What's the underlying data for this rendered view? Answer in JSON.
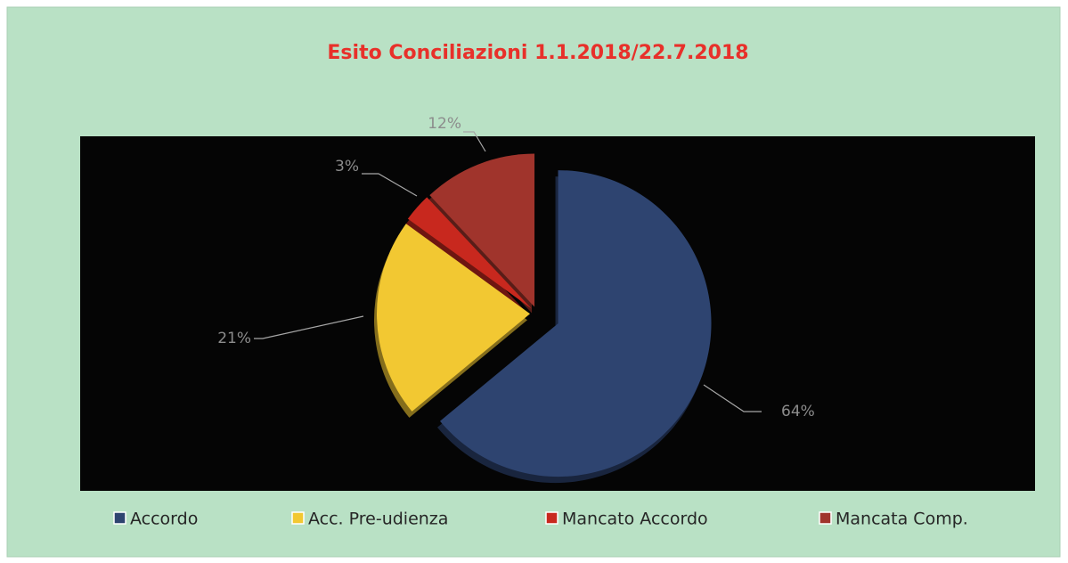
{
  "chart_data": {
    "type": "pie",
    "title": "Esito Conciliazioni 1.1.2018/22.7.2018",
    "categories": [
      "Accordo",
      "Acc. Pre-udienza",
      "Mancato Accordo",
      "Mancata Comp."
    ],
    "values": [
      64,
      21,
      3,
      12
    ],
    "value_labels": [
      "64%",
      "21%",
      "3%",
      "12%"
    ],
    "colors": [
      "#2e4470",
      "#f2c832",
      "#c8281e",
      "#a0342c"
    ],
    "legend": "bottom"
  }
}
